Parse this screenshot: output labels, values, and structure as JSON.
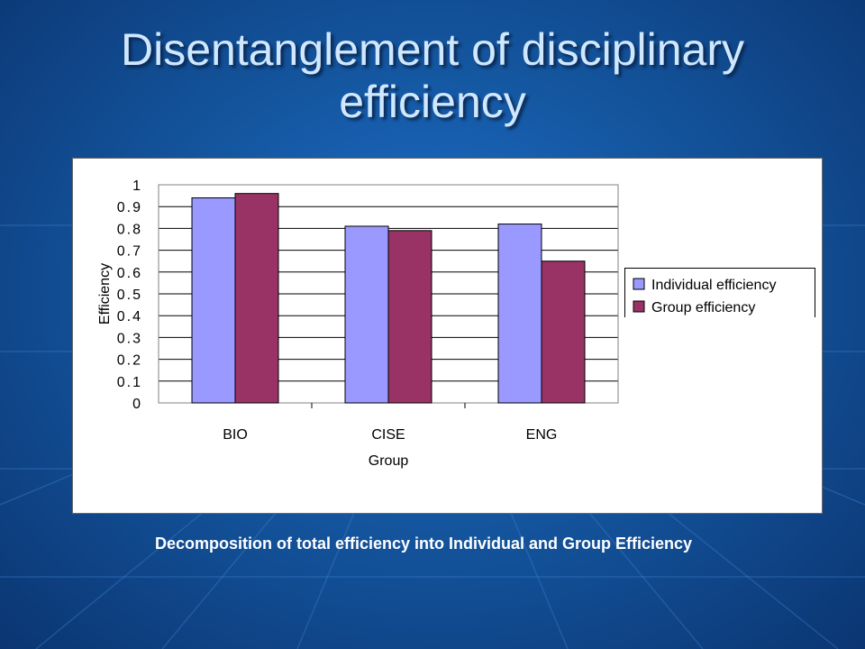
{
  "slide": {
    "title": "Disentanglement of disciplinary efficiency",
    "caption": "Decomposition of total efficiency into Individual and Group Efficiency"
  },
  "colors": {
    "individual": "#9999ff",
    "group": "#993366",
    "text_title": "#cfe8ff"
  },
  "chart_data": {
    "type": "bar",
    "title": "",
    "xlabel": "Group",
    "ylabel": "Efficiency",
    "categories": [
      "BIO",
      "CISE",
      "ENG"
    ],
    "series": [
      {
        "name": "Individual efficiency",
        "color": "#9999ff",
        "values": [
          0.94,
          0.81,
          0.82
        ]
      },
      {
        "name": "Group efficiency",
        "color": "#993366",
        "values": [
          0.96,
          0.79,
          0.65
        ]
      }
    ],
    "ylim": [
      0,
      1
    ],
    "yticks": [
      "0",
      "0.1",
      "0.2",
      "0.3",
      "0.4",
      "0.5",
      "0.6",
      "0.7",
      "0.8",
      "0.9",
      "1"
    ],
    "grid": true,
    "legend": "right"
  }
}
